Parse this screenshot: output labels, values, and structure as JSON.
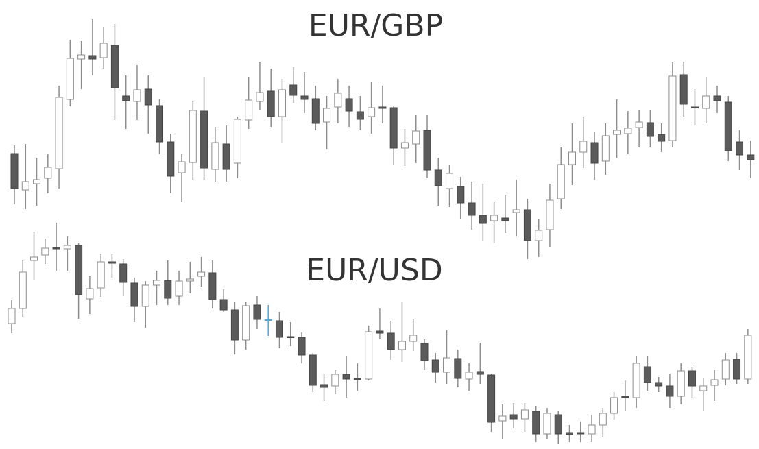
{
  "chart_data": [
    {
      "type": "candlestick",
      "title": "EUR/GBP",
      "ylim": [
        0,
        655
      ],
      "up_color": "#ffffff",
      "down_color": "#5b5b5b",
      "wick_color": "#8c8c8c",
      "open": [
        431,
        378,
        387,
        395,
        409,
        510,
        569,
        574,
        571,
        589,
        515,
        507,
        525,
        501,
        448,
        403,
        418,
        493,
        408,
        445,
        417,
        480,
        507,
        522,
        485,
        531,
        515,
        511,
        477,
        499,
        511,
        492,
        485,
        499,
        498,
        439,
        445,
        465,
        407,
        380,
        383,
        359,
        341,
        333,
        337,
        345,
        349,
        304,
        320,
        365,
        415,
        433,
        447,
        420,
        459,
        460,
        469,
        476,
        459,
        450,
        546,
        499,
        497,
        515,
        506,
        448,
        429
      ],
      "high": [
        443,
        445,
        425,
        430,
        530,
        597,
        595,
        627,
        615,
        620,
        545,
        560,
        545,
        510,
        460,
        430,
        507,
        543,
        470,
        472,
        485,
        543,
        565,
        555,
        540,
        557,
        550,
        530,
        515,
        540,
        530,
        515,
        535,
        530,
        500,
        467,
        487,
        487,
        425,
        415,
        397,
        390,
        387,
        360,
        370,
        393,
        365,
        335,
        387,
        440,
        475,
        485,
        463,
        475,
        510,
        493,
        495,
        495,
        475,
        565,
        565,
        525,
        543,
        530,
        515,
        465,
        450
      ],
      "low": [
        357,
        350,
        355,
        373,
        380,
        500,
        525,
        545,
        555,
        480,
        467,
        480,
        460,
        430,
        373,
        360,
        393,
        393,
        390,
        390,
        395,
        467,
        495,
        470,
        447,
        505,
        490,
        465,
        437,
        475,
        470,
        465,
        460,
        475,
        415,
        413,
        417,
        395,
        355,
        353,
        335,
        320,
        303,
        300,
        315,
        310,
        277,
        280,
        295,
        350,
        385,
        410,
        393,
        400,
        425,
        430,
        440,
        440,
        433,
        440,
        485,
        473,
        475,
        490,
        420,
        407,
        395
      ],
      "close": [
        380,
        390,
        393,
        411,
        513,
        570,
        575,
        569,
        592,
        527,
        508,
        524,
        502,
        448,
        398,
        419,
        494,
        410,
        447,
        408,
        481,
        509,
        520,
        485,
        524,
        516,
        510,
        475,
        497,
        519,
        493,
        481,
        498,
        497,
        439,
        447,
        464,
        407,
        384,
        402,
        359,
        341,
        329,
        341,
        333,
        349,
        304,
        319,
        363,
        415,
        433,
        449,
        417,
        457,
        465,
        468,
        477,
        456,
        449,
        544,
        503,
        498,
        515,
        508,
        435,
        429,
        422
      ]
    },
    {
      "type": "candlestick",
      "title": "EUR/USD",
      "ylim": [
        0,
        655
      ],
      "up_color": "#ffffff",
      "down_color": "#5b5b5b",
      "wick_color": "#8c8c8c",
      "highlight_color": "#4da6e0",
      "highlight_index": 23,
      "open": [
        183,
        205,
        275,
        283,
        294,
        292,
        297,
        219,
        235,
        273,
        270,
        242,
        208,
        239,
        246,
        223,
        245,
        252,
        257,
        218,
        203,
        159,
        210,
        189,
        187,
        164,
        163,
        137,
        94,
        92,
        109,
        103,
        102,
        172,
        169,
        145,
        157,
        154,
        130,
        112,
        132,
        102,
        113,
        108,
        41,
        50,
        44,
        55,
        22,
        50,
        24,
        24,
        22,
        35,
        52,
        77,
        75,
        120,
        97,
        92,
        77,
        114,
        85,
        93,
        102,
        131,
        102
      ],
      "high": [
        217,
        275,
        317,
        307,
        330,
        310,
        300,
        253,
        285,
        285,
        277,
        250,
        245,
        260,
        275,
        260,
        273,
        280,
        275,
        233,
        215,
        215,
        223,
        210,
        200,
        185,
        170,
        140,
        110,
        115,
        135,
        125,
        180,
        205,
        187,
        215,
        190,
        160,
        140,
        173,
        145,
        125,
        155,
        110,
        65,
        67,
        67,
        63,
        60,
        55,
        35,
        40,
        50,
        60,
        83,
        100,
        135,
        135,
        105,
        110,
        125,
        120,
        103,
        115,
        140,
        140,
        175
      ],
      "low": [
        169,
        193,
        247,
        270,
        260,
        260,
        190,
        197,
        222,
        250,
        223,
        185,
        177,
        210,
        210,
        210,
        227,
        237,
        205,
        200,
        138,
        145,
        175,
        165,
        147,
        150,
        125,
        83,
        70,
        80,
        75,
        85,
        100,
        160,
        130,
        127,
        143,
        115,
        97,
        95,
        90,
        85,
        95,
        25,
        15,
        30,
        25,
        10,
        15,
        7,
        10,
        10,
        10,
        17,
        43,
        55,
        60,
        85,
        83,
        60,
        65,
        75,
        55,
        70,
        93,
        95,
        95
      ],
      "close": [
        205,
        258,
        280,
        293,
        292,
        297,
        225,
        234,
        273,
        271,
        243,
        208,
        239,
        246,
        220,
        245,
        248,
        258,
        218,
        203,
        159,
        209,
        189,
        188,
        163,
        163,
        137,
        93,
        90,
        109,
        102,
        101,
        171,
        169,
        145,
        157,
        166,
        129,
        112,
        133,
        103,
        112,
        109,
        39,
        48,
        44,
        57,
        22,
        52,
        22,
        21,
        22,
        35,
        52,
        75,
        75,
        125,
        97,
        92,
        77,
        114,
        92,
        92,
        101,
        130,
        102,
        166
      ]
    }
  ]
}
